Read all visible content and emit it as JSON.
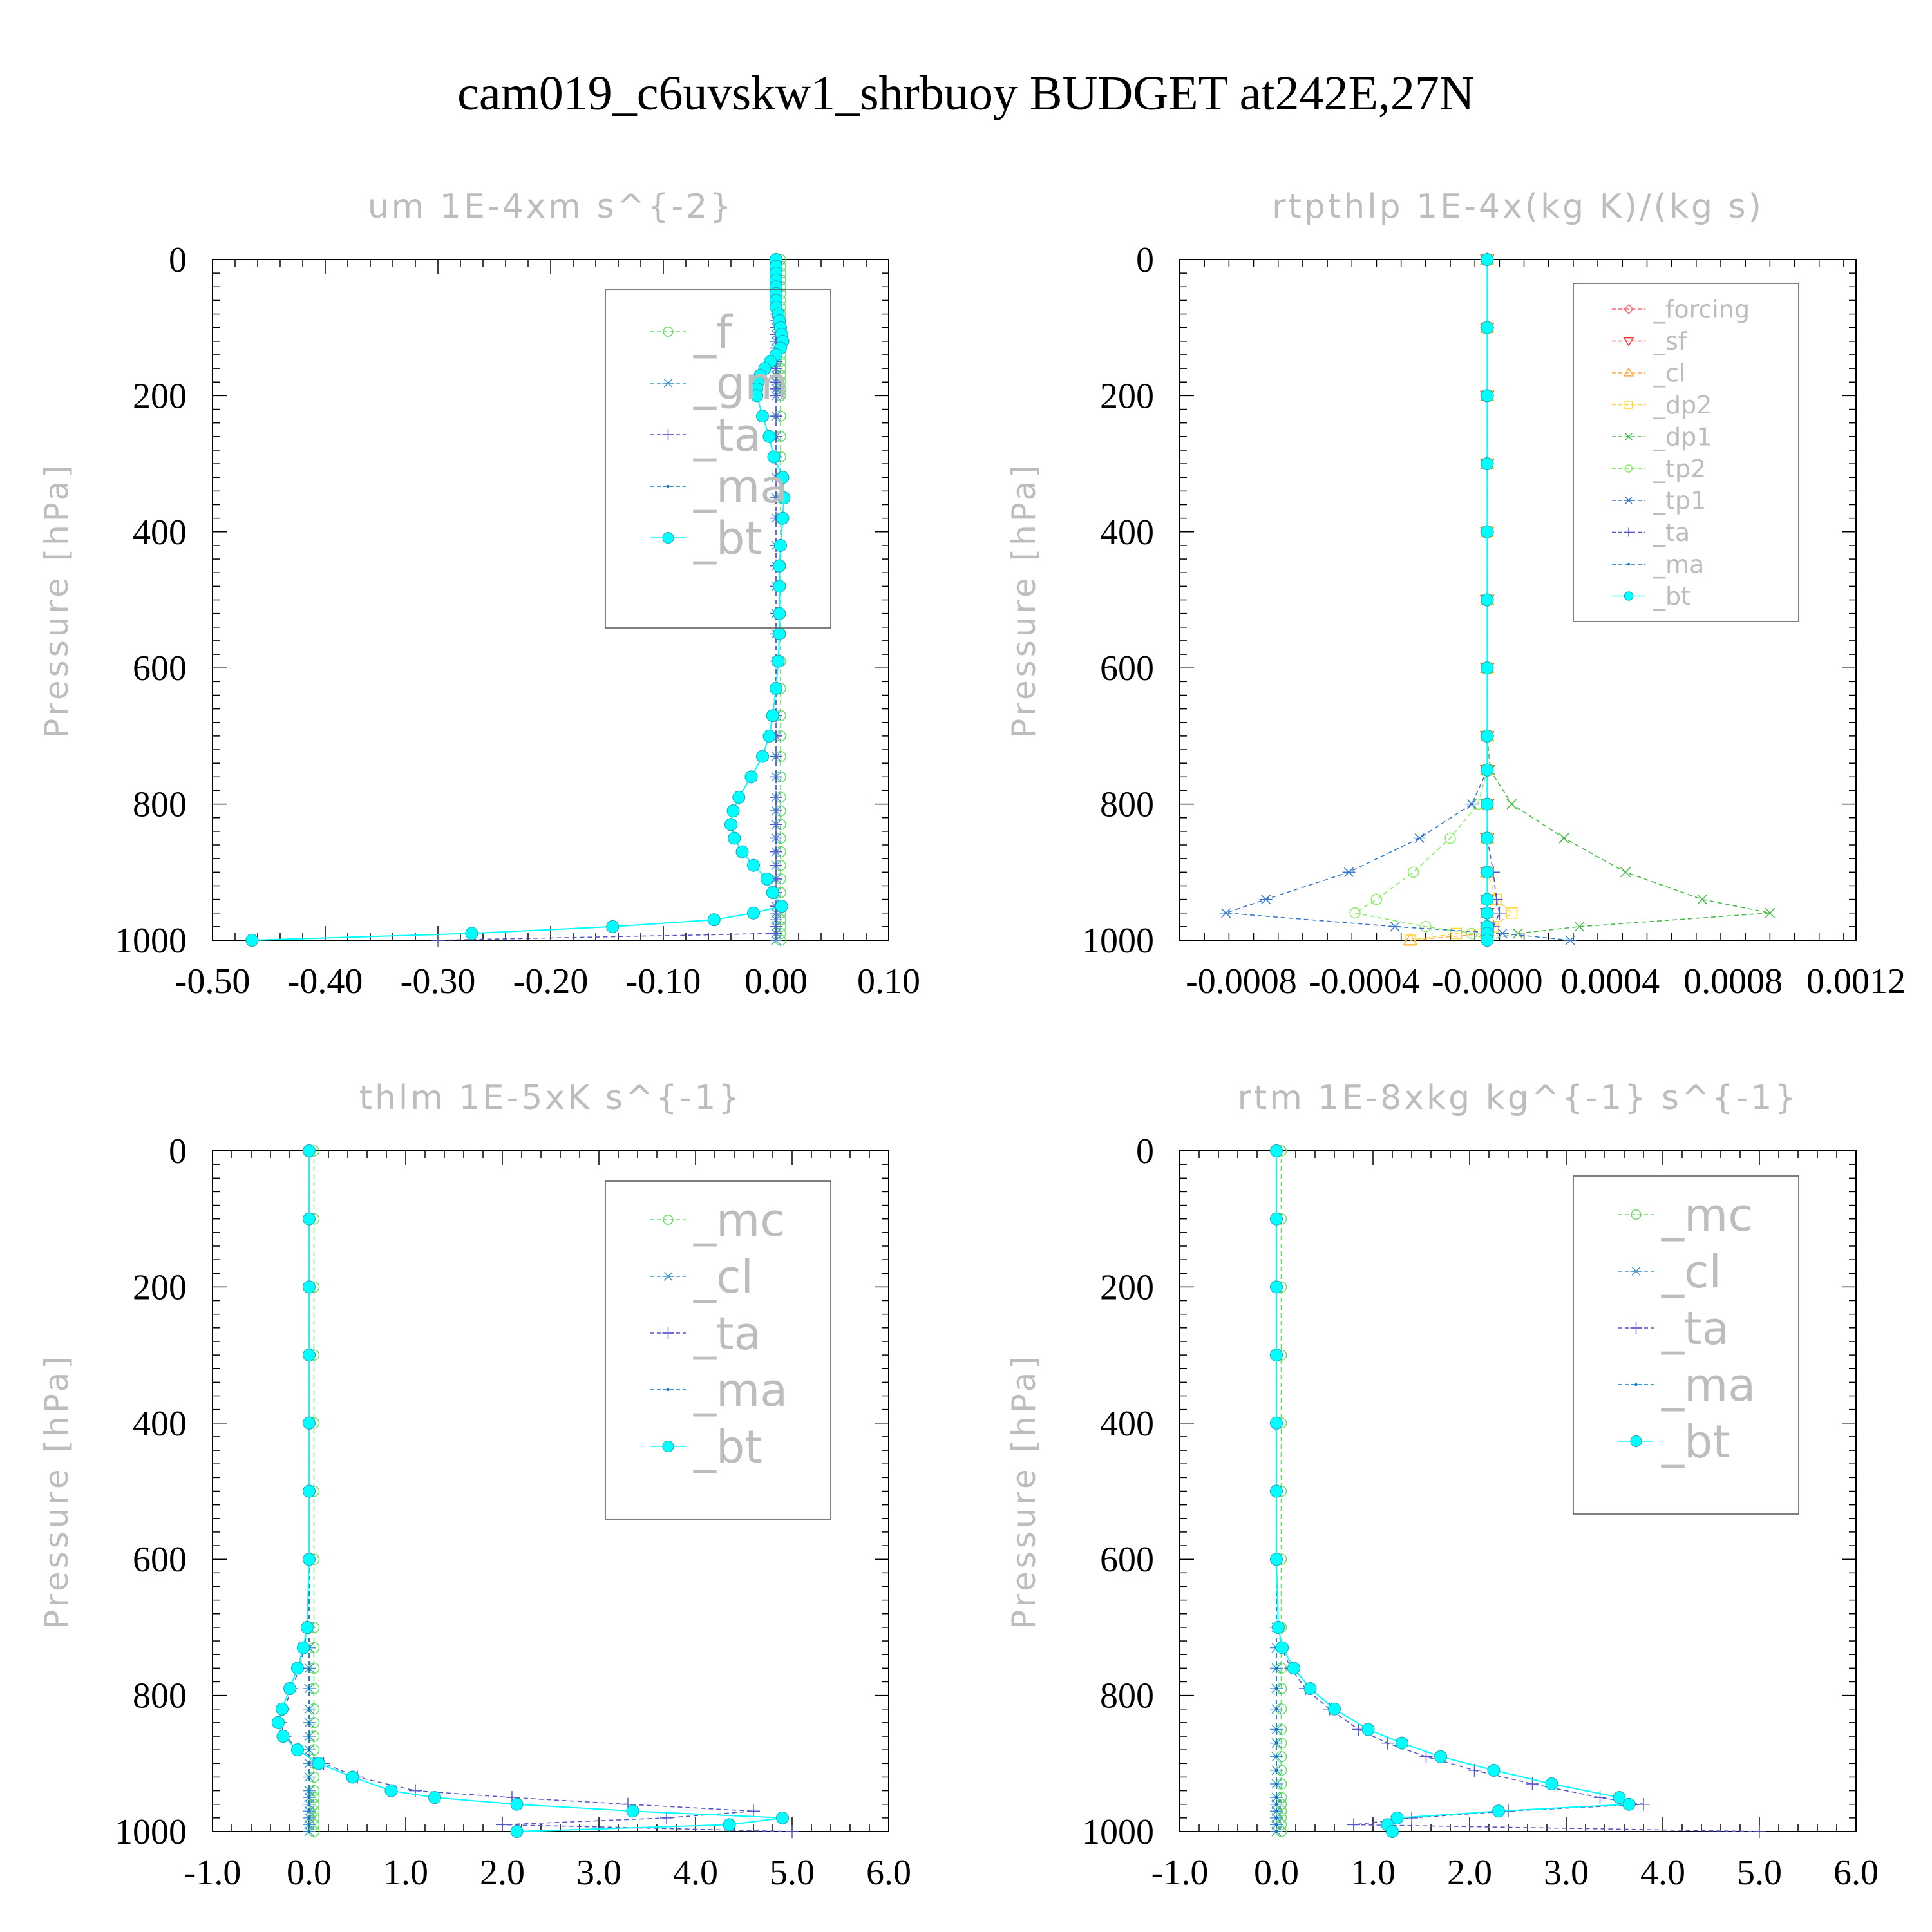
{
  "title": "cam019_c6uvskw1_shrbuoy  BUDGET at242E,27N",
  "colors": {
    "forcing": "#ff6666",
    "sf": "#ff3333",
    "cl_orange": "#ffaa44",
    "dp2": "#ffd633",
    "dp1": "#44bb44",
    "f": "#66dd66",
    "mc": "#66dd66",
    "tp2": "#88ee66",
    "gm": "#4499cc",
    "cl": "#4499cc",
    "tp1": "#3377cc",
    "ta": "#5555cc",
    "ma": "#0077cc",
    "bt": "#00ffff"
  },
  "chart_data": [
    {
      "type": "line",
      "title": "um  1E-4xm s^{-2}",
      "ylabel": "Pressure [hPa]",
      "xlim": [
        -0.5,
        0.1
      ],
      "ylim": [
        1000,
        0
      ],
      "xticks": [
        "-0.50",
        "-0.40",
        "-0.30",
        "-0.20",
        "-0.10",
        "0.00",
        "0.10"
      ],
      "yticks": [
        "0",
        "200",
        "400",
        "600",
        "800",
        "1000"
      ],
      "legend": [
        "_f",
        "_gm",
        "_ta",
        "_ma",
        "_bt"
      ],
      "pressure": [
        0,
        10,
        20,
        30,
        40,
        50,
        60,
        70,
        80,
        90,
        100,
        110,
        120,
        130,
        140,
        150,
        160,
        170,
        180,
        190,
        200,
        230,
        260,
        290,
        320,
        350,
        380,
        420,
        450,
        480,
        520,
        550,
        590,
        630,
        670,
        700,
        730,
        760,
        790,
        810,
        830,
        850,
        870,
        890,
        910,
        930,
        950,
        960,
        970,
        980,
        990,
        1000
      ],
      "series": [
        {
          "name": "_f",
          "color": "#66dd66",
          "values": [
            0.004,
            0.004,
            0.004,
            0.004,
            0.004,
            0.004,
            0.004,
            0.004,
            0.004,
            0.004,
            0.004,
            0.004,
            0.004,
            0.004,
            0.004,
            0.004,
            0.004,
            0.004,
            0.004,
            0.004,
            0.004,
            0.004,
            0.004,
            0.004,
            0.004,
            0.004,
            0.004,
            0.004,
            0.004,
            0.004,
            0.004,
            0.004,
            0.004,
            0.004,
            0.004,
            0.004,
            0.004,
            0.004,
            0.004,
            0.004,
            0.004,
            0.004,
            0.004,
            0.004,
            0.004,
            0.004,
            0.004,
            0.004,
            0.004,
            0.004,
            0.004,
            0.004
          ]
        },
        {
          "name": "_gm",
          "color": "#4499cc",
          "values": [
            0.0,
            0.0,
            0.0,
            0.0,
            0.0,
            0.0,
            0.0,
            0.0,
            0.0,
            0.0,
            0.0,
            0.0,
            0.0,
            0.0,
            0.0,
            0.0,
            0.0,
            0.0,
            0.0,
            0.0,
            0.0,
            0.0,
            0.0,
            0.0,
            0.0,
            0.0,
            0.0,
            0.0,
            0.0,
            0.0,
            0.0,
            0.0,
            0.0,
            0.0,
            0.0,
            0.0,
            0.0,
            0.0,
            0.0,
            0.0,
            0.0,
            0.0,
            0.0,
            0.0,
            0.0,
            0.0,
            0.0,
            0.0,
            0.0,
            0.0,
            0.0,
            0.0
          ]
        },
        {
          "name": "_ta",
          "color": "#5555cc",
          "values": [
            0.0,
            0.0,
            0.0,
            0.0,
            0.0,
            0.0,
            0.0,
            0.0,
            0.0,
            0.0,
            0.0,
            0.0,
            0.0,
            0.0,
            0.0,
            0.0,
            0.0,
            0.0,
            0.0,
            0.0,
            0.0,
            0.0,
            0.0,
            0.0,
            0.0,
            0.0,
            0.0,
            0.0,
            0.0,
            0.0,
            0.0,
            0.0,
            0.0,
            0.0,
            0.0,
            0.0,
            0.0,
            0.0,
            0.0,
            0.0,
            0.0,
            0.0,
            0.0,
            0.0,
            0.0,
            0.0,
            0.0,
            0.0,
            0.0,
            0.0,
            0.0,
            -0.3
          ]
        },
        {
          "name": "_ma",
          "color": "#0077cc",
          "values": [
            0.0,
            0.0,
            0.0,
            0.0,
            0.0,
            0.0,
            0.0,
            0.0,
            0.002,
            0.003,
            0.004,
            0.005,
            0.006,
            0.004,
            0.0,
            -0.005,
            -0.01,
            -0.014,
            -0.016,
            -0.017,
            -0.017,
            -0.012,
            -0.006,
            -0.002,
            0.006,
            0.007,
            0.006,
            0.004,
            0.003,
            0.003,
            0.003,
            0.003,
            0.002,
            0.0,
            -0.003,
            -0.006,
            -0.012,
            -0.022,
            -0.033,
            -0.038,
            -0.04,
            -0.037,
            -0.03,
            -0.02,
            -0.008,
            -0.003,
            0.005,
            -0.02,
            -0.055,
            -0.145,
            -0.27,
            -0.465
          ]
        },
        {
          "name": "_bt",
          "color": "#00ffff",
          "values": [
            0.0,
            0.0,
            0.0,
            0.0,
            0.0,
            0.0,
            0.0,
            0.0,
            0.002,
            0.003,
            0.004,
            0.005,
            0.006,
            0.004,
            0.0,
            -0.005,
            -0.01,
            -0.014,
            -0.016,
            -0.017,
            -0.017,
            -0.012,
            -0.006,
            -0.002,
            0.006,
            0.007,
            0.006,
            0.004,
            0.003,
            0.003,
            0.003,
            0.003,
            0.002,
            0.0,
            -0.003,
            -0.006,
            -0.012,
            -0.022,
            -0.033,
            -0.038,
            -0.04,
            -0.037,
            -0.03,
            -0.02,
            -0.008,
            -0.003,
            0.005,
            -0.02,
            -0.055,
            -0.145,
            -0.27,
            -0.465
          ]
        }
      ]
    },
    {
      "type": "line",
      "title": "rtpthlp  1E-4x(kg K)/(kg s)",
      "ylabel": "Pressure [hPa]",
      "xlim": [
        -0.001,
        0.0012
      ],
      "ylim": [
        1000,
        0
      ],
      "xticks": [
        "-0.0008",
        "-0.0004",
        "-0.0000",
        "0.0004",
        "0.0008",
        "0.0012"
      ],
      "yticks": [
        "0",
        "200",
        "400",
        "600",
        "800",
        "1000"
      ],
      "legend": [
        "_forcing",
        "_sf",
        "_cl",
        "_dp2",
        "_dp1",
        "_tp2",
        "_tp1",
        "_ta",
        "_ma",
        "_bt"
      ],
      "pressure": [
        0,
        100,
        200,
        300,
        400,
        500,
        600,
        700,
        750,
        800,
        850,
        900,
        940,
        960,
        980,
        990,
        1000
      ],
      "series": [
        {
          "name": "_forcing",
          "color": "#ff6666",
          "values": [
            0,
            0,
            0,
            0,
            0,
            0,
            0,
            0,
            0,
            0,
            0,
            0,
            0,
            0,
            0,
            0,
            0
          ]
        },
        {
          "name": "_sf",
          "color": "#ff3333",
          "values": [
            0,
            0,
            0,
            0,
            0,
            0,
            0,
            0,
            0,
            0,
            0,
            0,
            0,
            0,
            0,
            0,
            0
          ]
        },
        {
          "name": "_cl",
          "color": "#ffaa44",
          "values": [
            0,
            0,
            0,
            0,
            0,
            0,
            0,
            0,
            0,
            0,
            0,
            0,
            0,
            0,
            0,
            0,
            -0.00025
          ]
        },
        {
          "name": "_dp2",
          "color": "#ffd633",
          "values": [
            0,
            0,
            0,
            0,
            0,
            0,
            0,
            0,
            0,
            0,
            0,
            0,
            3e-05,
            8e-05,
            2e-05,
            -0.0001,
            -0.00025
          ]
        },
        {
          "name": "_dp1",
          "color": "#44bb44",
          "values": [
            0,
            0,
            0,
            0,
            0,
            0,
            0,
            0,
            1e-05,
            8e-05,
            0.00025,
            0.00045,
            0.0007,
            0.00092,
            0.0003,
            0.0001,
            0.0
          ]
        },
        {
          "name": "_tp2",
          "color": "#88ee66",
          "values": [
            0,
            0,
            0,
            0,
            0,
            0,
            0,
            0,
            0,
            -3e-05,
            -0.00012,
            -0.00024,
            -0.00036,
            -0.00043,
            -0.0002,
            -5e-05,
            0.0
          ]
        },
        {
          "name": "_tp1",
          "color": "#3377cc",
          "values": [
            0,
            0,
            0,
            0,
            0,
            0,
            0,
            0,
            0,
            -5e-05,
            -0.00022,
            -0.00045,
            -0.00072,
            -0.00085,
            -0.0003,
            5e-05,
            0.00027
          ]
        },
        {
          "name": "_ta",
          "color": "#5555cc",
          "values": [
            0,
            0,
            0,
            0,
            0,
            0,
            0,
            0,
            0,
            0,
            0,
            2e-05,
            3e-05,
            4e-05,
            2e-05,
            0,
            0
          ]
        },
        {
          "name": "_ma",
          "color": "#0077cc",
          "values": [
            0,
            0,
            0,
            0,
            0,
            0,
            0,
            0,
            0,
            0,
            0,
            0,
            0,
            0,
            0,
            0,
            0
          ]
        },
        {
          "name": "_bt",
          "color": "#00ffff",
          "values": [
            0,
            0,
            0,
            0,
            0,
            0,
            0,
            0,
            0,
            0,
            0,
            0,
            0,
            0,
            0,
            0,
            0
          ]
        }
      ]
    },
    {
      "type": "line",
      "title": "thlm  1E-5xK s^{-1}",
      "ylabel": "Pressure [hPa]",
      "xlim": [
        -1.0,
        6.0
      ],
      "ylim": [
        1000,
        0
      ],
      "xticks": [
        "-1.0",
        "0.0",
        "1.0",
        "2.0",
        "3.0",
        "4.0",
        "5.0",
        "6.0"
      ],
      "yticks": [
        "0",
        "200",
        "400",
        "600",
        "800",
        "1000"
      ],
      "legend": [
        "_mc",
        "_cl",
        "_ta",
        "_ma",
        "_bt"
      ],
      "pressure": [
        0,
        100,
        200,
        300,
        400,
        500,
        600,
        700,
        730,
        760,
        790,
        820,
        840,
        860,
        880,
        900,
        920,
        940,
        950,
        960,
        970,
        980,
        990,
        1000
      ],
      "series": [
        {
          "name": "_mc",
          "color": "#66dd66",
          "values": [
            0.05,
            0.05,
            0.05,
            0.05,
            0.05,
            0.05,
            0.05,
            0.05,
            0.05,
            0.05,
            0.05,
            0.05,
            0.05,
            0.05,
            0.05,
            0.05,
            0.05,
            0.05,
            0.05,
            0.05,
            0.05,
            0.05,
            0.05,
            0.05
          ]
        },
        {
          "name": "_cl",
          "color": "#4499cc",
          "values": [
            0,
            0,
            0,
            0,
            0,
            0,
            0,
            0,
            0,
            0,
            0,
            0,
            0,
            0,
            0,
            0,
            0,
            0,
            0,
            0,
            0,
            0,
            0,
            0
          ]
        },
        {
          "name": "_ta",
          "color": "#5555cc",
          "values": [
            0,
            0,
            0,
            0,
            0,
            0,
            0,
            -0.02,
            -0.05,
            -0.1,
            -0.18,
            -0.26,
            -0.3,
            -0.25,
            -0.1,
            0.15,
            0.5,
            1.1,
            2.1,
            3.3,
            4.6,
            3.7,
            2.0,
            5.0
          ]
        },
        {
          "name": "_ma",
          "color": "#0077cc",
          "values": [
            0,
            0,
            0,
            0,
            0,
            0,
            0,
            0,
            0,
            0,
            0,
            0,
            0,
            0,
            0,
            0,
            0,
            0,
            0,
            0,
            0,
            0,
            0,
            0
          ]
        },
        {
          "name": "_bt",
          "color": "#00ffff",
          "values": [
            0,
            0,
            0,
            0,
            0,
            0,
            0,
            -0.02,
            -0.06,
            -0.12,
            -0.2,
            -0.28,
            -0.32,
            -0.27,
            -0.12,
            0.1,
            0.45,
            0.85,
            1.3,
            2.15,
            3.35,
            4.9,
            4.35,
            2.15
          ]
        }
      ]
    },
    {
      "type": "line",
      "title": "rtm  1E-8xkg kg^{-1} s^{-1}",
      "ylabel": "Pressure [hPa]",
      "xlim": [
        -1.0,
        6.0
      ],
      "ylim": [
        1000,
        0
      ],
      "xticks": [
        "-1.0",
        "0.0",
        "1.0",
        "2.0",
        "3.0",
        "4.0",
        "5.0",
        "6.0"
      ],
      "yticks": [
        "0",
        "200",
        "400",
        "600",
        "800",
        "1000"
      ],
      "legend": [
        "_mc",
        "_cl",
        "_ta",
        "_ma",
        "_bt"
      ],
      "pressure": [
        0,
        100,
        200,
        300,
        400,
        500,
        600,
        700,
        730,
        760,
        790,
        820,
        850,
        870,
        890,
        910,
        930,
        950,
        960,
        970,
        980,
        990,
        1000
      ],
      "series": [
        {
          "name": "_mc",
          "color": "#66dd66",
          "values": [
            0.05,
            0.05,
            0.05,
            0.05,
            0.05,
            0.05,
            0.05,
            0.05,
            0.05,
            0.05,
            0.05,
            0.05,
            0.05,
            0.05,
            0.05,
            0.05,
            0.05,
            0.05,
            0.05,
            0.05,
            0.05,
            0.05,
            0.05
          ]
        },
        {
          "name": "_cl",
          "color": "#4499cc",
          "values": [
            0,
            0,
            0,
            0,
            0,
            0,
            0,
            0,
            0,
            0,
            0,
            0,
            0,
            0,
            0,
            0,
            0,
            0,
            0,
            0,
            0,
            0,
            0
          ]
        },
        {
          "name": "_ta",
          "color": "#5555cc",
          "values": [
            0,
            0,
            0,
            0,
            0,
            0,
            0,
            0.02,
            0.05,
            0.15,
            0.3,
            0.55,
            0.85,
            1.15,
            1.55,
            2.05,
            2.65,
            3.35,
            3.8,
            2.4,
            1.4,
            0.8,
            5.0
          ]
        },
        {
          "name": "_ma",
          "color": "#0077cc",
          "values": [
            0,
            0,
            0,
            0,
            0,
            0,
            0,
            0,
            0,
            0,
            0,
            0,
            0,
            0,
            0,
            0,
            0,
            0,
            0,
            0,
            0,
            0,
            0
          ]
        },
        {
          "name": "_bt",
          "color": "#00ffff",
          "values": [
            0,
            0,
            0,
            0,
            0,
            0,
            0,
            0.02,
            0.06,
            0.18,
            0.35,
            0.6,
            0.95,
            1.3,
            1.7,
            2.25,
            2.85,
            3.55,
            3.65,
            2.3,
            1.25,
            1.15,
            1.2
          ]
        }
      ]
    }
  ]
}
